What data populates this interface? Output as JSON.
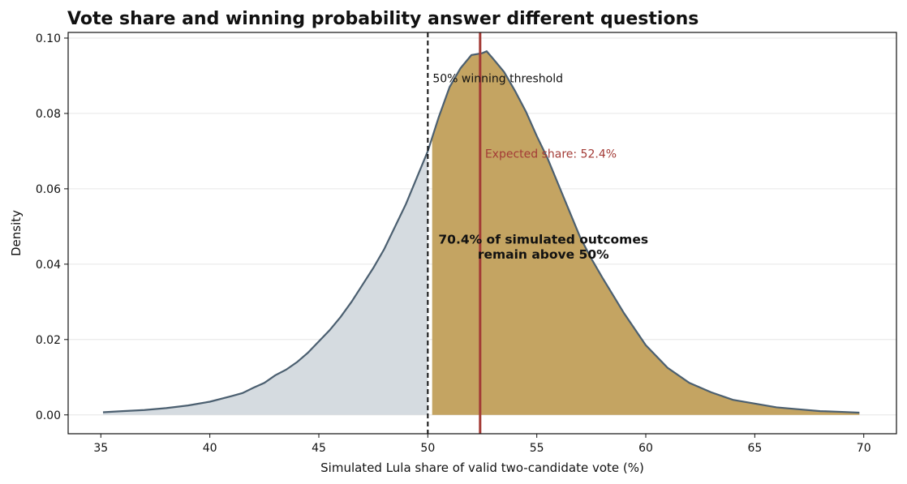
{
  "chart_data": {
    "type": "area",
    "title": "Vote share and winning probability answer different questions",
    "xlabel": "Simulated Lula share of valid two-candidate vote (%)",
    "ylabel": "Density",
    "xlim": [
      33.5,
      71.5
    ],
    "ylim": [
      -0.005,
      0.1015
    ],
    "xticks": [
      35,
      40,
      45,
      50,
      55,
      60,
      65,
      70
    ],
    "yticks": [
      0.0,
      0.02,
      0.04,
      0.06,
      0.08,
      0.1
    ],
    "xtick_labels": [
      "35",
      "40",
      "45",
      "50",
      "55",
      "60",
      "65",
      "70"
    ],
    "ytick_labels": [
      "0.00",
      "0.02",
      "0.04",
      "0.06",
      "0.08",
      "0.10"
    ],
    "grid": "horizontal",
    "series": [
      {
        "x": [
          35.1,
          36,
          37,
          38,
          39,
          40,
          41,
          41.5,
          42,
          42.5,
          43,
          43.5,
          44,
          44.5,
          45,
          45.5,
          46,
          46.5,
          47,
          47.5,
          48,
          48.5,
          49,
          49.5,
          50,
          50.5,
          51,
          51.5,
          52,
          52.5,
          52.7,
          53,
          53.5,
          54,
          54.5,
          55,
          55.5,
          56,
          56.5,
          57,
          57.5,
          58,
          59,
          60,
          61,
          62,
          63,
          64,
          65,
          66,
          67,
          68,
          69,
          69.8
        ],
        "y": [
          0.0007,
          0.001,
          0.0013,
          0.0018,
          0.0025,
          0.0035,
          0.005,
          0.0058,
          0.0072,
          0.0085,
          0.0105,
          0.012,
          0.014,
          0.0165,
          0.0195,
          0.0225,
          0.026,
          0.03,
          0.0345,
          0.039,
          0.044,
          0.05,
          0.056,
          0.063,
          0.07,
          0.079,
          0.087,
          0.092,
          0.0955,
          0.096,
          0.0965,
          0.0945,
          0.091,
          0.086,
          0.0805,
          0.074,
          0.068,
          0.061,
          0.054,
          0.047,
          0.0415,
          0.0365,
          0.027,
          0.0185,
          0.0125,
          0.0085,
          0.006,
          0.004,
          0.003,
          0.002,
          0.0015,
          0.001,
          0.0008,
          0.0006
        ]
      }
    ],
    "threshold": 50,
    "expected_share": 52.4,
    "annotations": {
      "threshold_label": "50% winning threshold",
      "expected_label": "Expected share: 52.4%",
      "prob_line1": "70.4% of simulated outcomes",
      "prob_line2": "remain above 50%"
    },
    "colors": {
      "below_fill": "#d5dbe0",
      "above_fill": "#c4a462",
      "curve": "#4b5f70",
      "threshold_line": "#111111",
      "expected_line": "#a33b36",
      "grid": "#e6e6e6"
    }
  }
}
